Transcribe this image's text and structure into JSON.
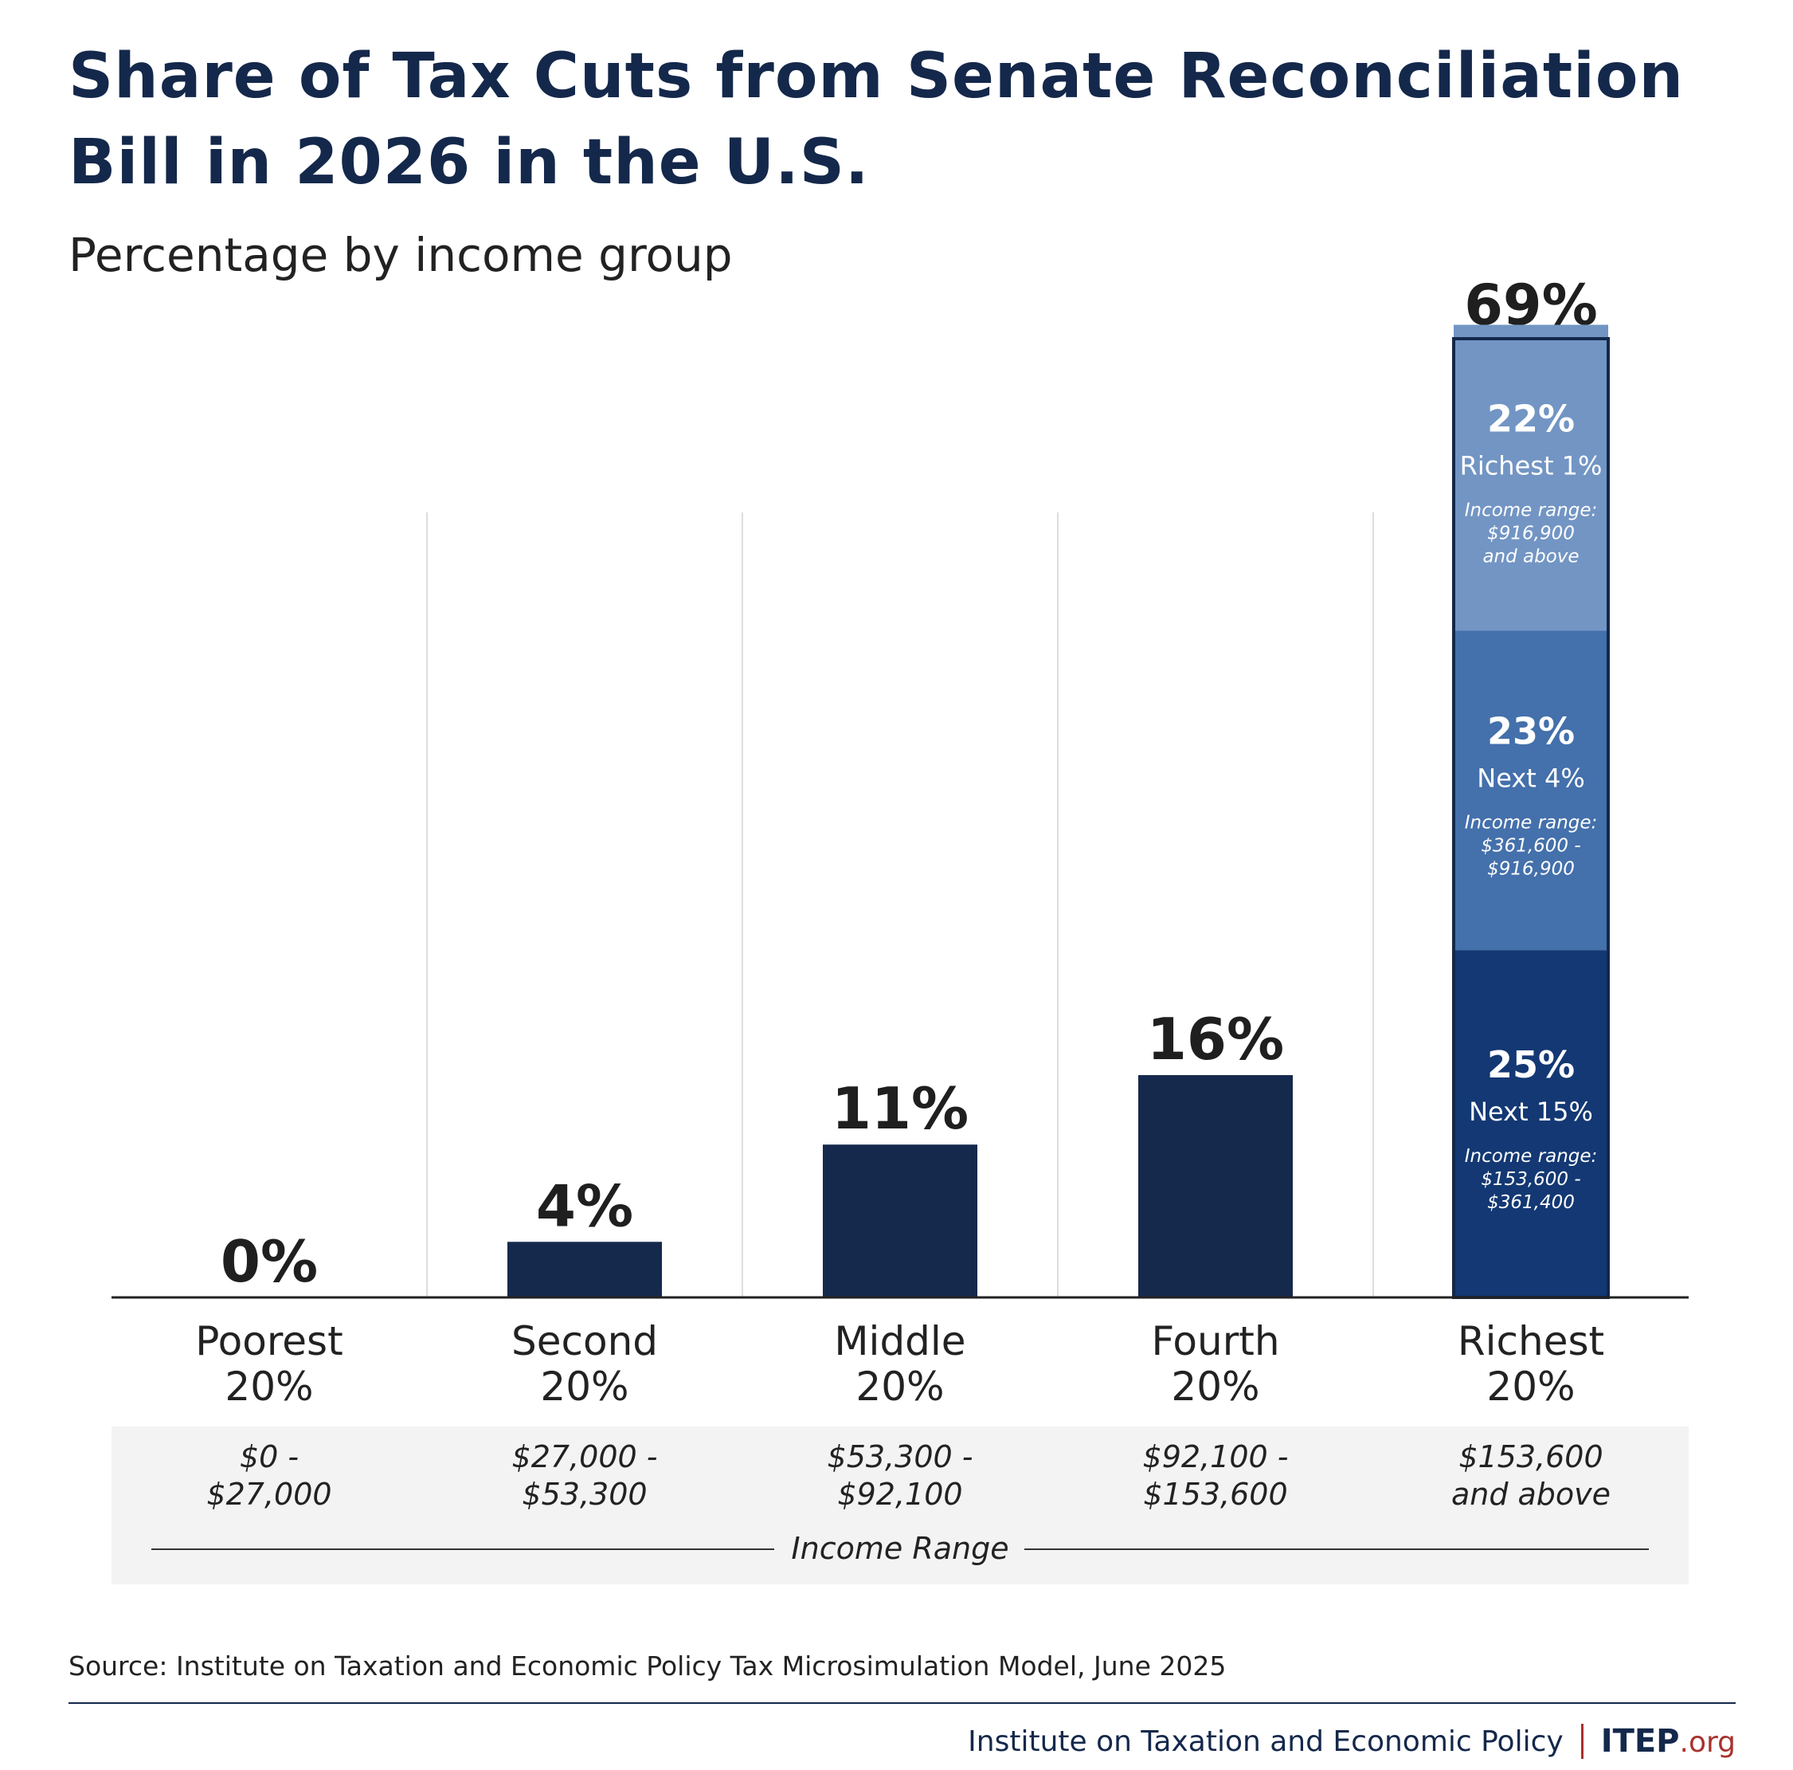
{
  "title_line1": "Share of Tax Cuts from Senate Reconciliation",
  "title_line2": "Bill in 2026 in the U.S.",
  "subtitle": "Percentage by income group",
  "source": "Source: Institute on Taxation and Economic Policy Tax Microsimulation Model, June 2025",
  "footer": {
    "org": "Institute on Taxation and Economic Policy",
    "logo_main": "ITEP",
    "logo_suffix": ".org"
  },
  "colors": {
    "bar": "#15294d",
    "top_seg": "#7295c4",
    "mid_seg": "#4470ab",
    "bottom_seg": "#133873",
    "gridline": "#dddddd",
    "income_band": "#f3f3f3"
  },
  "chart_data": {
    "type": "bar",
    "categories": [
      "Poorest 20%",
      "Second 20%",
      "Middle 20%",
      "Fourth 20%",
      "Richest 20%"
    ],
    "category_lines": [
      [
        "Poorest",
        "20%"
      ],
      [
        "Second",
        "20%"
      ],
      [
        "Middle",
        "20%"
      ],
      [
        "Fourth",
        "20%"
      ],
      [
        "Richest",
        "20%"
      ]
    ],
    "values": [
      0,
      4,
      11,
      16,
      69
    ],
    "value_labels": [
      "0%",
      "4%",
      "11%",
      "16%",
      "69%"
    ],
    "income_ranges": [
      [
        "$0 -",
        "$27,000"
      ],
      [
        "$27,000 -",
        "$53,300"
      ],
      [
        "$53,300 -",
        "$92,100"
      ],
      [
        "$92,100 -",
        "$153,600"
      ],
      [
        "$153,600",
        "and above"
      ]
    ],
    "income_range_label": "Income Range",
    "ylim": [
      0,
      69
    ],
    "stacked_breakdown": {
      "category": "Richest 20%",
      "segments": [
        {
          "value": 25,
          "label": "25%",
          "name": "Next 15%",
          "range_lines": [
            "Income range:",
            "$153,600 -",
            "$361,400"
          ]
        },
        {
          "value": 23,
          "label": "23%",
          "name": "Next 4%",
          "range_lines": [
            "Income range:",
            "$361,600 -",
            "$916,900"
          ]
        },
        {
          "value": 22,
          "label": "22%",
          "name": "Richest 1%",
          "range_lines": [
            "Income range:",
            "$916,900",
            "and above"
          ]
        }
      ]
    }
  }
}
